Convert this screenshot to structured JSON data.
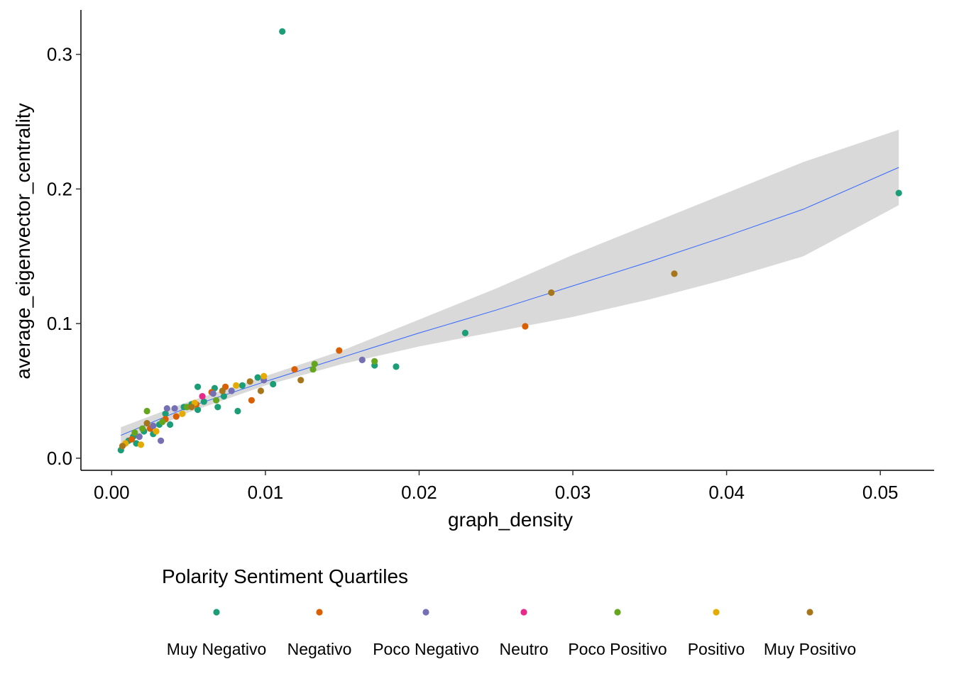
{
  "chart_data": {
    "type": "scatter",
    "xlabel": "graph_density",
    "ylabel": "average_eigenvector_centrality",
    "xlim": [
      -0.002,
      0.0535
    ],
    "ylim": [
      -0.009,
      0.333
    ],
    "x_ticks": [
      0.0,
      0.01,
      0.02,
      0.03,
      0.04,
      0.05
    ],
    "x_tick_labels": [
      "0.00",
      "0.01",
      "0.02",
      "0.03",
      "0.04",
      "0.05"
    ],
    "y_ticks": [
      0.0,
      0.1,
      0.2,
      0.3
    ],
    "y_tick_labels": [
      "0.0",
      "0.1",
      "0.2",
      "0.3"
    ],
    "grid": false,
    "legend": {
      "title": "Polarity Sentiment Quartiles",
      "position": "bottom"
    },
    "series": [
      {
        "name": "Muy Negativo",
        "color": "#1b9e77",
        "points": [
          [
            0.0006,
            0.006
          ],
          [
            0.0011,
            0.013
          ],
          [
            0.0014,
            0.016
          ],
          [
            0.0016,
            0.011
          ],
          [
            0.0021,
            0.02
          ],
          [
            0.0027,
            0.018
          ],
          [
            0.0031,
            0.025
          ],
          [
            0.0035,
            0.033
          ],
          [
            0.0038,
            0.025
          ],
          [
            0.0047,
            0.038
          ],
          [
            0.0052,
            0.04
          ],
          [
            0.0056,
            0.036
          ],
          [
            0.0056,
            0.053
          ],
          [
            0.006,
            0.042
          ],
          [
            0.0067,
            0.052
          ],
          [
            0.0069,
            0.038
          ],
          [
            0.0073,
            0.046
          ],
          [
            0.0082,
            0.035
          ],
          [
            0.0085,
            0.054
          ],
          [
            0.0095,
            0.06
          ],
          [
            0.0105,
            0.055
          ],
          [
            0.0111,
            0.317
          ],
          [
            0.0171,
            0.069
          ],
          [
            0.0185,
            0.068
          ],
          [
            0.023,
            0.093
          ],
          [
            0.0512,
            0.197
          ]
        ]
      },
      {
        "name": "Negativo",
        "color": "#d95f02",
        "points": [
          [
            0.0013,
            0.014
          ],
          [
            0.0025,
            0.022
          ],
          [
            0.0035,
            0.029
          ],
          [
            0.0042,
            0.031
          ],
          [
            0.0055,
            0.04
          ],
          [
            0.0065,
            0.049
          ],
          [
            0.0074,
            0.053
          ],
          [
            0.0091,
            0.043
          ],
          [
            0.0119,
            0.066
          ],
          [
            0.0148,
            0.08
          ],
          [
            0.0269,
            0.098
          ]
        ]
      },
      {
        "name": "Poco Negativo",
        "color": "#7570b3",
        "points": [
          [
            0.0018,
            0.016
          ],
          [
            0.0027,
            0.024
          ],
          [
            0.0032,
            0.013
          ],
          [
            0.0036,
            0.037
          ],
          [
            0.0041,
            0.037
          ],
          [
            0.0066,
            0.048
          ],
          [
            0.0078,
            0.05
          ],
          [
            0.0099,
            0.058
          ],
          [
            0.0163,
            0.073
          ]
        ]
      },
      {
        "name": "Neutro",
        "color": "#e7298a",
        "points": [
          [
            0.0059,
            0.046
          ]
        ]
      },
      {
        "name": "Poco Positivo",
        "color": "#66a61e",
        "points": [
          [
            0.0015,
            0.019
          ],
          [
            0.002,
            0.022
          ],
          [
            0.0023,
            0.035
          ],
          [
            0.0033,
            0.027
          ],
          [
            0.0049,
            0.038
          ],
          [
            0.0068,
            0.043
          ],
          [
            0.0131,
            0.066
          ],
          [
            0.0132,
            0.07
          ],
          [
            0.0171,
            0.072
          ]
        ]
      },
      {
        "name": "Positivo",
        "color": "#e6ab02",
        "points": [
          [
            0.0009,
            0.011
          ],
          [
            0.0019,
            0.01
          ],
          [
            0.0029,
            0.02
          ],
          [
            0.0046,
            0.033
          ],
          [
            0.0054,
            0.041
          ],
          [
            0.0081,
            0.054
          ],
          [
            0.0099,
            0.061
          ]
        ]
      },
      {
        "name": "Muy Positivo",
        "color": "#a6761d",
        "points": [
          [
            0.0007,
            0.009
          ],
          [
            0.0023,
            0.026
          ],
          [
            0.0052,
            0.038
          ],
          [
            0.0072,
            0.05
          ],
          [
            0.009,
            0.057
          ],
          [
            0.0097,
            0.05
          ],
          [
            0.0123,
            0.058
          ],
          [
            0.0286,
            0.123
          ],
          [
            0.0366,
            0.137
          ]
        ]
      }
    ],
    "smooth": {
      "color": "#3366ff",
      "band_color": "#d9d9d9",
      "x": [
        0.0006,
        0.005,
        0.01,
        0.015,
        0.02,
        0.025,
        0.03,
        0.035,
        0.04,
        0.045,
        0.0512
      ],
      "y": [
        0.017,
        0.038,
        0.057,
        0.075,
        0.093,
        0.11,
        0.128,
        0.146,
        0.165,
        0.185,
        0.216
      ],
      "lower": [
        0.011,
        0.034,
        0.054,
        0.07,
        0.083,
        0.094,
        0.105,
        0.118,
        0.133,
        0.15,
        0.188
      ],
      "upper": [
        0.023,
        0.042,
        0.061,
        0.08,
        0.103,
        0.126,
        0.151,
        0.174,
        0.197,
        0.22,
        0.244
      ]
    }
  }
}
